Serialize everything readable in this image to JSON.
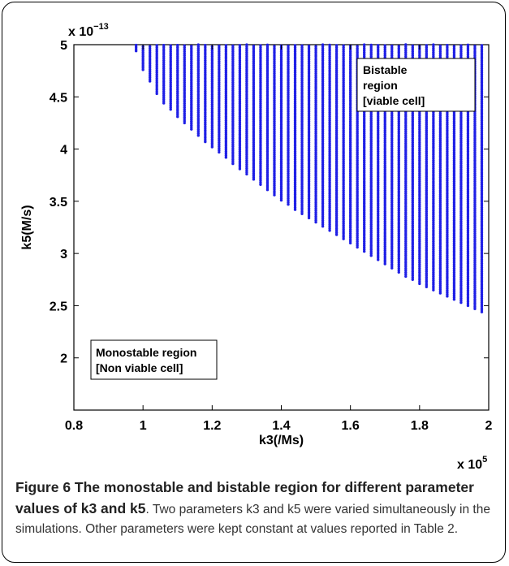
{
  "chart_data": {
    "type": "scatter",
    "title": "",
    "xlabel": "k3(/Ms)",
    "ylabel": "k5(M/s)",
    "x_multiplier_label": "x 10",
    "x_multiplier_exp": "5",
    "y_multiplier_label": "x 10",
    "y_multiplier_exp": "−13",
    "xlim": [
      0.8,
      2.0
    ],
    "ylim": [
      1.5,
      5.0
    ],
    "x_ticks": [
      0.8,
      1.0,
      1.2,
      1.4,
      1.6,
      1.8,
      2.0
    ],
    "x_tick_labels": [
      "0.8",
      "1",
      "1.2",
      "1.4",
      "1.6",
      "1.8",
      "2"
    ],
    "y_ticks": [
      2.0,
      2.5,
      3.0,
      3.5,
      4.0,
      4.5,
      5.0
    ],
    "y_tick_labels": [
      "2",
      "2.5",
      "3",
      "3.5",
      "4",
      "4.5",
      "5"
    ],
    "grid": false,
    "marker_color": "#1f1fe6",
    "bistable_columns": {
      "k3": [
        0.98,
        1.0,
        1.02,
        1.04,
        1.06,
        1.08,
        1.1,
        1.12,
        1.14,
        1.16,
        1.18,
        1.2,
        1.22,
        1.24,
        1.26,
        1.28,
        1.3,
        1.32,
        1.34,
        1.36,
        1.38,
        1.4,
        1.42,
        1.44,
        1.46,
        1.48,
        1.5,
        1.52,
        1.54,
        1.56,
        1.58,
        1.6,
        1.62,
        1.64,
        1.66,
        1.68,
        1.7,
        1.72,
        1.74,
        1.76,
        1.78,
        1.8,
        1.82,
        1.84,
        1.86,
        1.88,
        1.9,
        1.92,
        1.94,
        1.96,
        1.98
      ],
      "k5_min": [
        4.94,
        4.76,
        4.65,
        4.53,
        4.44,
        4.38,
        4.31,
        4.25,
        4.19,
        4.13,
        4.07,
        4.02,
        3.97,
        3.92,
        3.86,
        3.81,
        3.76,
        3.71,
        3.66,
        3.61,
        3.56,
        3.51,
        3.47,
        3.42,
        3.38,
        3.34,
        3.3,
        3.26,
        3.22,
        3.18,
        3.14,
        3.1,
        3.06,
        3.02,
        2.98,
        2.94,
        2.9,
        2.86,
        2.82,
        2.78,
        2.75,
        2.71,
        2.68,
        2.65,
        2.62,
        2.59,
        2.56,
        2.53,
        2.5,
        2.47,
        2.44
      ],
      "k5_max": 5.0
    },
    "annotations": [
      {
        "lines": [
          "Bistable",
          "region",
          "[viable cell]"
        ]
      },
      {
        "lines": [
          "Monostable region",
          "[Non viable cell]"
        ]
      }
    ]
  },
  "caption": {
    "lead": "Figure 6 The monostable and bistable region for different parameter values of k3 and k5",
    "body": ". Two parameters k3 and k5 were varied simultaneously in the simulations. Other parameters were kept constant at values reported in Table 2."
  }
}
